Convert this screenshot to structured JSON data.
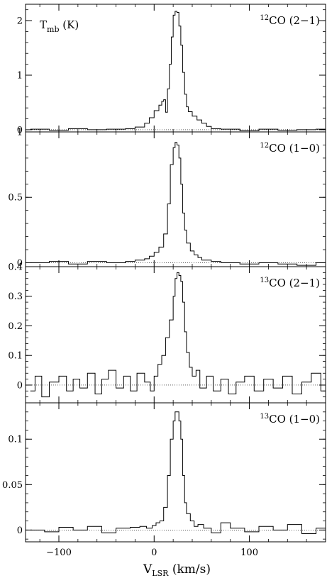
{
  "chart_data": [
    {
      "type": "line",
      "style": "histogram-step",
      "label": {
        "sup": "12",
        "text": "CO (2−1)"
      },
      "ylabel": {
        "main": "T",
        "sub": "mb",
        "unit": "(K)"
      },
      "xlim": [
        -135,
        180
      ],
      "ylim": [
        -0.04,
        2.3
      ],
      "yticks": [
        0,
        1,
        2
      ],
      "ytick_labels": [
        "0",
        "1",
        "2"
      ],
      "peak": 2.17,
      "series": [
        {
          "x": [
            -130,
            -110,
            -90,
            -70,
            -50,
            -30,
            -20,
            -10,
            -5,
            0,
            5,
            8,
            10,
            12,
            14,
            16,
            18,
            20,
            22,
            24,
            26,
            28,
            30,
            32,
            34,
            36,
            40,
            45,
            50,
            55,
            60,
            70,
            90,
            110,
            130,
            150,
            170,
            180
          ],
          "values": [
            0.01,
            -0.01,
            0.02,
            0.0,
            0.01,
            0.02,
            0.05,
            0.12,
            0.22,
            0.35,
            0.45,
            0.52,
            0.55,
            0.32,
            0.75,
            1.2,
            1.7,
            2.1,
            2.17,
            2.15,
            1.9,
            1.55,
            1.05,
            0.65,
            0.42,
            0.33,
            0.25,
            0.18,
            0.12,
            0.06,
            0.02,
            0.01,
            -0.02,
            0.01,
            -0.01,
            0.0,
            0.01,
            0.0
          ]
        }
      ]
    },
    {
      "type": "line",
      "style": "histogram-step",
      "label": {
        "sup": "12",
        "text": "CO (1−0)"
      },
      "xlim": [
        -135,
        180
      ],
      "ylim": [
        -0.03,
        1.0
      ],
      "yticks": [
        0,
        0.5,
        1
      ],
      "ytick_labels": [
        "0",
        "0.5",
        "1"
      ],
      "peak": 0.92,
      "series": [
        {
          "x": [
            -130,
            -110,
            -90,
            -70,
            -50,
            -30,
            -20,
            -10,
            -5,
            0,
            5,
            10,
            14,
            17,
            20,
            22,
            24,
            26,
            28,
            30,
            32,
            34,
            38,
            42,
            46,
            50,
            60,
            70,
            90,
            110,
            130,
            150,
            170,
            180
          ],
          "values": [
            0.0,
            0.01,
            -0.01,
            0.01,
            0.0,
            0.01,
            0.02,
            0.03,
            0.05,
            0.08,
            0.12,
            0.22,
            0.45,
            0.75,
            0.88,
            0.92,
            0.9,
            0.8,
            0.6,
            0.38,
            0.25,
            0.15,
            0.09,
            0.06,
            0.04,
            0.02,
            0.01,
            0.0,
            -0.01,
            0.0,
            -0.01,
            -0.02,
            0.0,
            0.0
          ]
        }
      ]
    },
    {
      "type": "line",
      "style": "histogram-step",
      "label": {
        "sup": "13",
        "text": "CO (2−1)"
      },
      "xlim": [
        -135,
        180
      ],
      "ylim": [
        -0.06,
        0.4
      ],
      "yticks": [
        0,
        0.1,
        0.2,
        0.3,
        0.4
      ],
      "ytick_labels": [
        "0",
        "0.1",
        "0.2",
        "0.3",
        "0.4"
      ],
      "peak": 0.38,
      "series": [
        {
          "x": [
            -130,
            -125,
            -118,
            -110,
            -100,
            -92,
            -85,
            -78,
            -70,
            -62,
            -55,
            -48,
            -40,
            -32,
            -25,
            -18,
            -10,
            -4,
            0,
            4,
            8,
            12,
            16,
            20,
            22,
            24,
            26,
            28,
            30,
            32,
            34,
            37,
            40,
            44,
            48,
            55,
            62,
            70,
            78,
            86,
            95,
            105,
            115,
            125,
            135,
            145,
            155,
            165,
            175,
            180
          ],
          "values": [
            -0.02,
            0.03,
            -0.04,
            0.01,
            0.03,
            -0.02,
            0.02,
            -0.01,
            0.04,
            -0.03,
            0.02,
            0.05,
            -0.01,
            0.03,
            -0.02,
            0.04,
            0.01,
            -0.02,
            0.03,
            0.07,
            0.1,
            0.16,
            0.22,
            0.3,
            0.36,
            0.38,
            0.37,
            0.35,
            0.28,
            0.18,
            0.11,
            0.06,
            0.03,
            0.05,
            -0.01,
            0.03,
            -0.02,
            0.02,
            -0.03,
            0.01,
            0.03,
            -0.02,
            0.02,
            -0.01,
            0.03,
            -0.03,
            0.01,
            0.04,
            -0.02,
            0.0
          ]
        }
      ]
    },
    {
      "type": "line",
      "style": "histogram-step",
      "label": {
        "sup": "13",
        "text": "CO (1−0)"
      },
      "xlim": [
        -135,
        180
      ],
      "ylim": [
        -0.013,
        0.14
      ],
      "yticks": [
        0,
        0.05,
        0.1
      ],
      "ytick_labels": [
        "0",
        "0.05",
        "0.1"
      ],
      "peak": 0.13,
      "series": [
        {
          "x": [
            -130,
            -115,
            -100,
            -85,
            -70,
            -55,
            -40,
            -25,
            -15,
            -8,
            -2,
            2,
            6,
            10,
            14,
            17,
            20,
            22,
            24,
            26,
            28,
            30,
            32,
            34,
            38,
            42,
            46,
            52,
            60,
            70,
            80,
            95,
            110,
            125,
            140,
            155,
            170,
            180
          ],
          "values": [
            0.0,
            -0.002,
            0.003,
            0.0,
            0.004,
            -0.003,
            0.002,
            0.003,
            0.004,
            0.002,
            0.005,
            0.008,
            0.01,
            0.025,
            0.06,
            0.1,
            0.12,
            0.13,
            0.13,
            0.12,
            0.1,
            0.06,
            0.03,
            0.018,
            0.01,
            0.004,
            0.006,
            0.002,
            -0.003,
            0.008,
            0.002,
            -0.002,
            0.004,
            0.0,
            0.006,
            -0.004,
            0.002,
            0.0
          ]
        }
      ]
    }
  ],
  "x_axis": {
    "ticks": [
      -100,
      0,
      100
    ],
    "tick_labels": [
      "−100",
      "0",
      "100"
    ],
    "title_main": "V",
    "title_sub": "LSR",
    "title_unit": "(km/s)"
  }
}
